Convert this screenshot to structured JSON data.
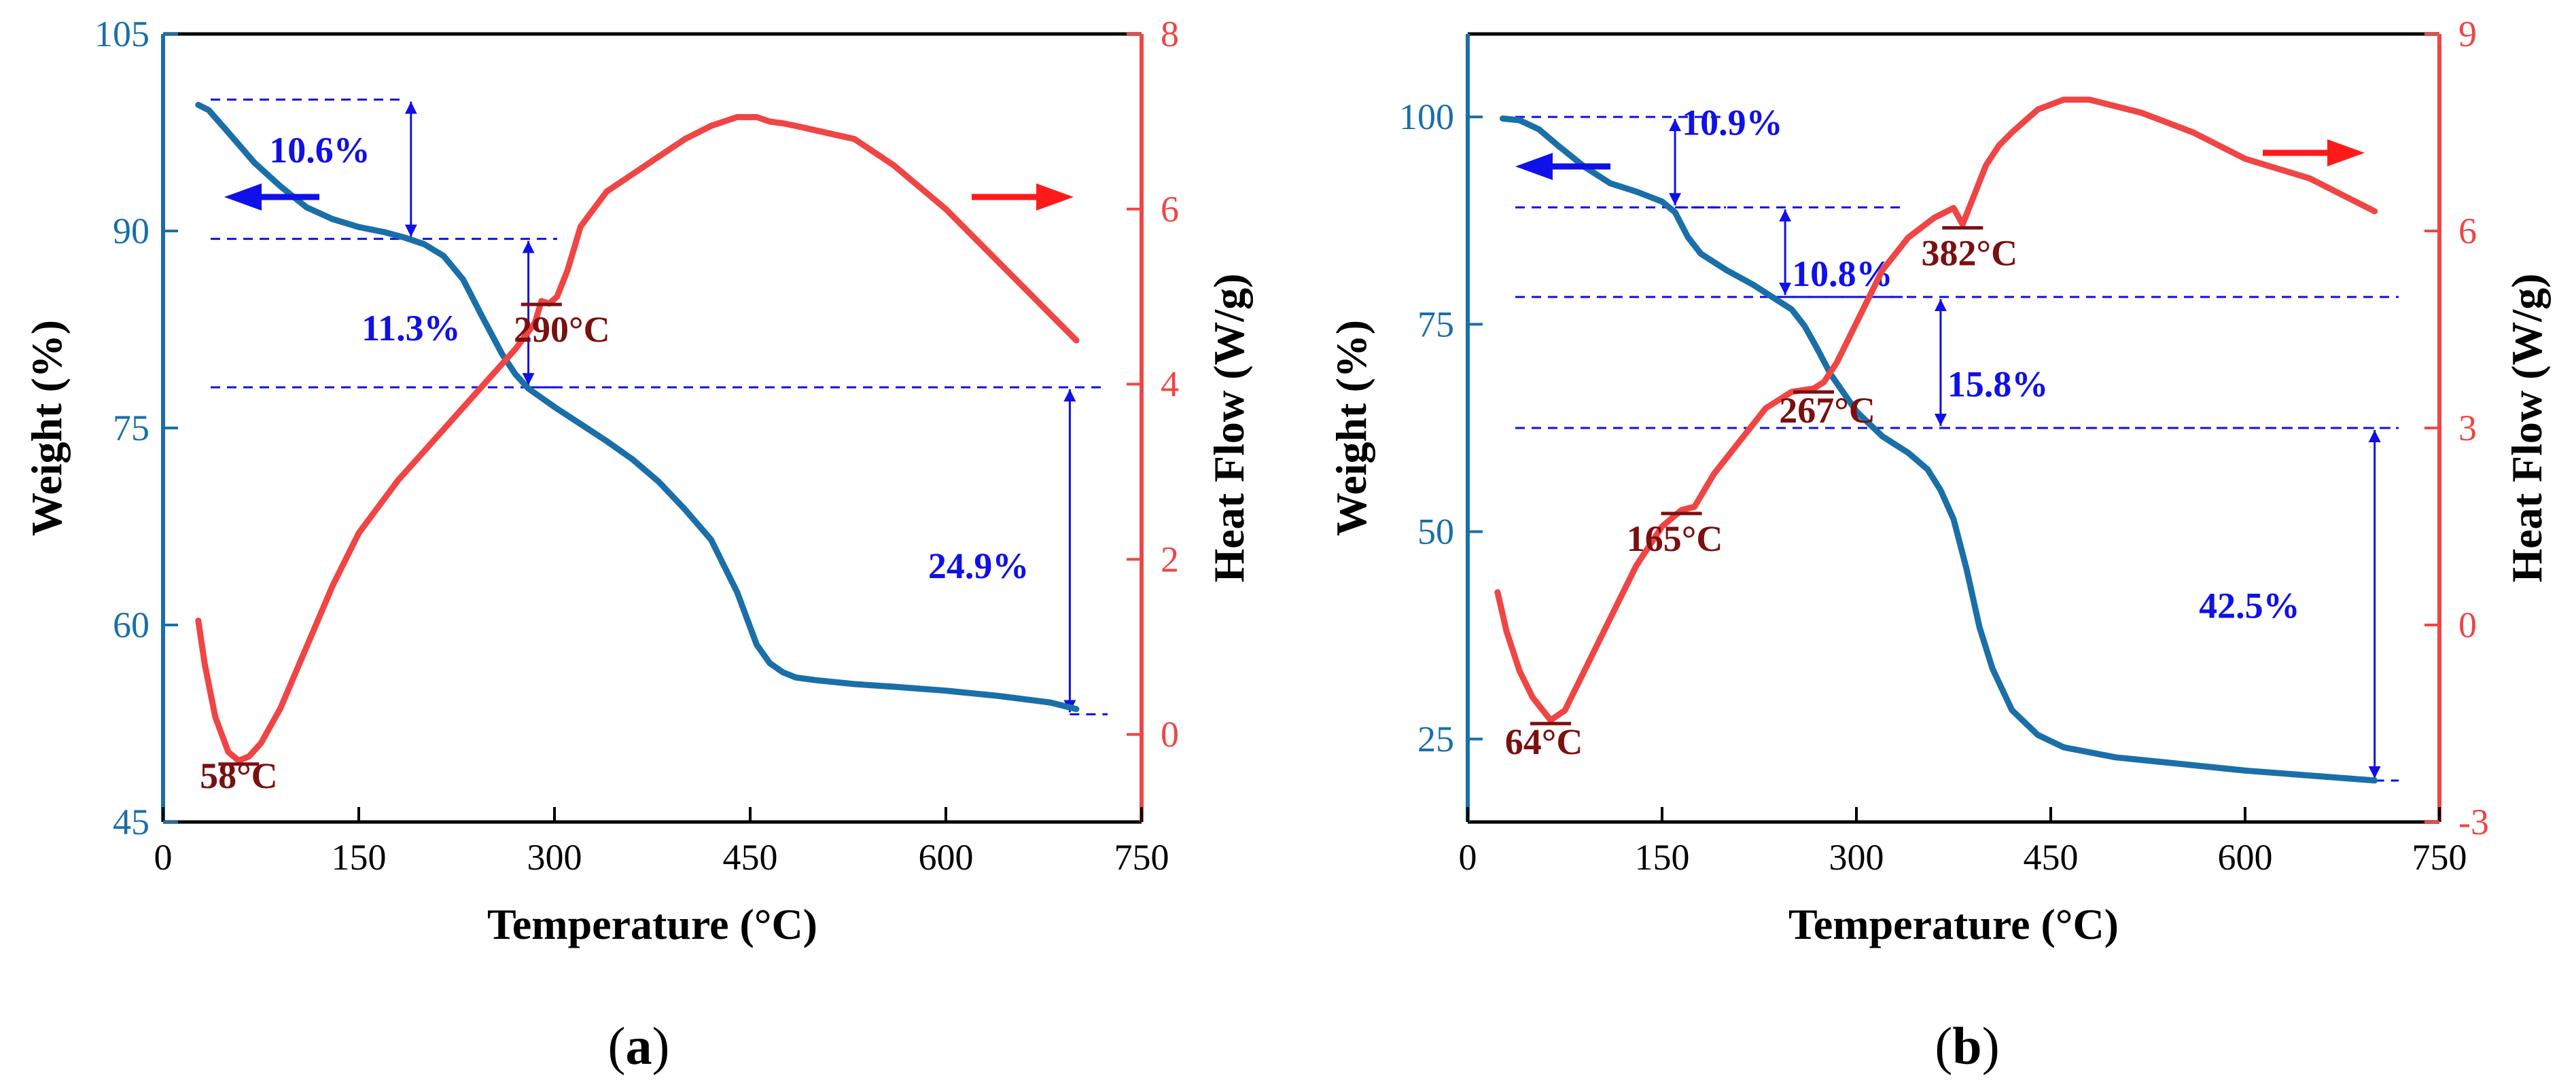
{
  "figure": {
    "colors": {
      "weight": "#1A6FA8",
      "heat": "#F04545",
      "annot": "#1010E8",
      "peak": "#7A1010",
      "axis": "#000000"
    }
  },
  "chart_data": [
    {
      "id": "a",
      "type": "line",
      "panel_label": "(a)",
      "caption": {
        "open": "(",
        "letter": "a",
        "close": ")"
      },
      "xlabel": "Temperature (°C)",
      "ylabel_left": "Weight (%)",
      "ylabel_right": "Heat Flow (W/g)",
      "xlim": [
        0,
        750
      ],
      "ylim_left": [
        45,
        105
      ],
      "ylim_right": [
        -1,
        8
      ],
      "xticks": [
        0,
        150,
        300,
        450,
        600,
        750
      ],
      "yticks_left": [
        45,
        60,
        75,
        90,
        105
      ],
      "yticks_right": [
        0,
        2,
        4,
        6,
        8
      ],
      "series": [
        {
          "name": "Weight",
          "axis": "left",
          "x": [
            27,
            35,
            50,
            70,
            90,
            110,
            130,
            150,
            170,
            185,
            200,
            215,
            230,
            245,
            260,
            270,
            280,
            290,
            300,
            320,
            340,
            360,
            380,
            400,
            420,
            440,
            455,
            465,
            475,
            485,
            500,
            530,
            560,
            600,
            640,
            680,
            700
          ],
          "y": [
            99.6,
            99.2,
            97.5,
            95.2,
            93.4,
            91.8,
            90.9,
            90.3,
            89.9,
            89.5,
            89.0,
            88.1,
            86.3,
            83.4,
            80.6,
            79.1,
            78.0,
            77.3,
            76.6,
            75.3,
            74.0,
            72.6,
            70.9,
            68.8,
            66.5,
            62.5,
            58.5,
            57.1,
            56.4,
            56.0,
            55.8,
            55.5,
            55.3,
            55.0,
            54.6,
            54.1,
            53.6
          ]
        },
        {
          "name": "Heat Flow",
          "axis": "right",
          "x": [
            27,
            32,
            40,
            50,
            58,
            66,
            75,
            90,
            110,
            130,
            150,
            180,
            210,
            240,
            270,
            285,
            290,
            296,
            302,
            310,
            320,
            340,
            360,
            380,
            400,
            420,
            440,
            455,
            465,
            475,
            485,
            500,
            530,
            560,
            600,
            640,
            680,
            700
          ],
          "y": [
            1.3,
            0.8,
            0.2,
            -0.2,
            -0.3,
            -0.25,
            -0.1,
            0.3,
            1.0,
            1.7,
            2.3,
            2.9,
            3.4,
            3.9,
            4.4,
            4.7,
            4.95,
            4.92,
            5.0,
            5.3,
            5.8,
            6.2,
            6.4,
            6.6,
            6.8,
            6.95,
            7.05,
            7.05,
            7.0,
            6.98,
            6.95,
            6.9,
            6.8,
            6.5,
            6.0,
            5.4,
            4.8,
            4.5
          ]
        }
      ],
      "peaks": [
        {
          "label": "58°C",
          "x": 58,
          "y": -0.3
        },
        {
          "label": "290°C",
          "x": 290,
          "y": 4.95
        }
      ],
      "mass_losses": [
        {
          "label": "10.6%",
          "x": 190,
          "from": 100,
          "to": 89.4
        },
        {
          "label": "11.3%",
          "x": 280,
          "from": 89.4,
          "to": 78.1
        },
        {
          "label": "24.9%",
          "x": 695,
          "from": 78.1,
          "to": 53.2
        }
      ],
      "arrows": [
        {
          "series": "Weight",
          "direction": "left"
        },
        {
          "series": "Heat Flow",
          "direction": "right"
        }
      ]
    },
    {
      "id": "b",
      "type": "line",
      "panel_label": "(b)",
      "caption": {
        "open": "(",
        "letter": "b",
        "close": ")"
      },
      "xlabel": "Temperature (°C)",
      "ylabel_left": "Weight (%)",
      "ylabel_right": "Heat Flow (W/g)",
      "xlim": [
        0,
        750
      ],
      "ylim_left": [
        15,
        110
      ],
      "ylim_right": [
        -3,
        9
      ],
      "xticks": [
        0,
        150,
        300,
        450,
        600,
        750
      ],
      "yticks_left": [
        25,
        50,
        75,
        100
      ],
      "yticks_right": [
        -3,
        0,
        3,
        6,
        9
      ],
      "series": [
        {
          "name": "Weight",
          "axis": "left",
          "x": [
            27,
            40,
            55,
            70,
            90,
            110,
            130,
            150,
            160,
            165,
            170,
            180,
            200,
            220,
            240,
            250,
            260,
            270,
            280,
            300,
            320,
            340,
            355,
            365,
            375,
            385,
            395,
            405,
            420,
            440,
            460,
            500,
            550,
            600,
            650,
            700
          ],
          "y": [
            99.8,
            99.6,
            98.5,
            96.5,
            94.0,
            92.0,
            91.0,
            89.8,
            88.5,
            87.0,
            85.5,
            83.5,
            81.5,
            79.8,
            77.8,
            76.8,
            74.8,
            72.0,
            69.0,
            64.5,
            61.5,
            59.5,
            57.5,
            55.0,
            51.5,
            45.5,
            38.5,
            33.5,
            28.5,
            25.5,
            24.0,
            22.8,
            22.0,
            21.2,
            20.6,
            20.0
          ]
        },
        {
          "name": "Heat Flow",
          "axis": "right",
          "x": [
            23,
            30,
            40,
            50,
            64,
            75,
            90,
            110,
            130,
            150,
            165,
            175,
            190,
            210,
            230,
            250,
            267,
            275,
            285,
            300,
            320,
            340,
            360,
            375,
            382,
            390,
            400,
            410,
            420,
            440,
            460,
            480,
            520,
            560,
            600,
            650,
            700
          ],
          "y": [
            0.5,
            -0.1,
            -0.7,
            -1.1,
            -1.45,
            -1.3,
            -0.7,
            0.1,
            0.9,
            1.5,
            1.75,
            1.8,
            2.3,
            2.8,
            3.3,
            3.55,
            3.6,
            3.7,
            4.0,
            4.6,
            5.4,
            5.9,
            6.2,
            6.35,
            6.1,
            6.5,
            7.0,
            7.3,
            7.5,
            7.85,
            8.0,
            8.0,
            7.8,
            7.5,
            7.1,
            6.8,
            6.3
          ]
        }
      ],
      "peaks": [
        {
          "label": "64°C",
          "x": 64,
          "y": -1.45
        },
        {
          "label": "165°C",
          "x": 165,
          "y": 1.75
        },
        {
          "label": "267°C",
          "x": 267,
          "y": 3.6
        },
        {
          "label": "382°C",
          "x": 382,
          "y": 6.1
        }
      ],
      "mass_losses": [
        {
          "label": "10.9%",
          "x": 160,
          "from": 100,
          "to": 89.1
        },
        {
          "label": "10.8%",
          "x": 245,
          "from": 89.1,
          "to": 78.3
        },
        {
          "label": "15.8%",
          "x": 365,
          "from": 78.3,
          "to": 62.5
        },
        {
          "label": "42.5%",
          "x": 700,
          "from": 62.5,
          "to": 20.0
        }
      ],
      "arrows": [
        {
          "series": "Weight",
          "direction": "left"
        },
        {
          "series": "Heat Flow",
          "direction": "right"
        }
      ]
    }
  ]
}
